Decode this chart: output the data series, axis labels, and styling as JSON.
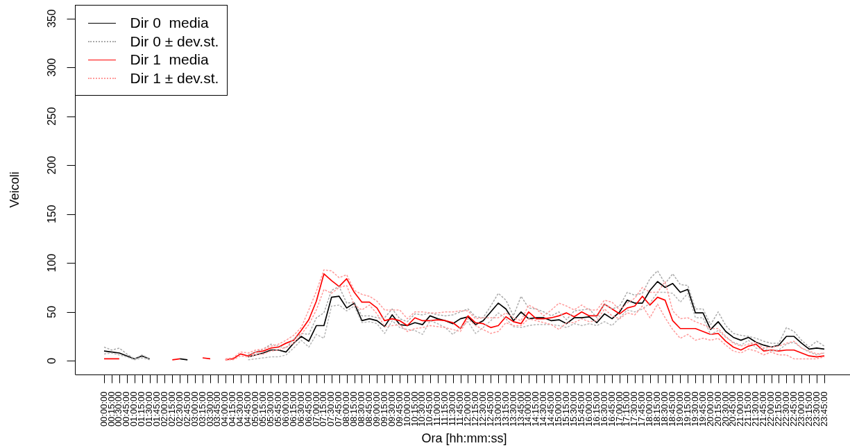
{
  "chart_data": {
    "type": "line",
    "xlabel": "Ora [hh:mm:ss]",
    "ylabel": "Veicoli",
    "legend": "top left",
    "categories": [
      "00:00:00",
      "00:15:00",
      "00:30:00",
      "00:45:00",
      "01:00:00",
      "01:15:00",
      "01:30:00",
      "01:45:00",
      "02:00:00",
      "02:15:00",
      "02:30:00",
      "02:45:00",
      "03:00:00",
      "03:15:00",
      "03:30:00",
      "03:45:00",
      "04:00:00",
      "04:15:00",
      "04:30:00",
      "04:45:00",
      "05:00:00",
      "05:15:00",
      "05:30:00",
      "05:45:00",
      "06:00:00",
      "06:15:00",
      "06:30:00",
      "06:45:00",
      "07:00:00",
      "07:15:00",
      "07:30:00",
      "07:45:00",
      "08:00:00",
      "08:15:00",
      "08:30:00",
      "08:45:00",
      "09:00:00",
      "09:15:00",
      "09:30:00",
      "09:45:00",
      "10:00:00",
      "10:15:00",
      "10:30:00",
      "10:45:00",
      "11:00:00",
      "11:15:00",
      "11:30:00",
      "11:45:00",
      "12:00:00",
      "12:15:00",
      "12:30:00",
      "12:45:00",
      "13:00:00",
      "13:15:00",
      "13:30:00",
      "13:45:00",
      "14:00:00",
      "14:15:00",
      "14:30:00",
      "14:45:00",
      "15:00:00",
      "15:15:00",
      "15:30:00",
      "15:45:00",
      "16:00:00",
      "16:15:00",
      "16:30:00",
      "16:45:00",
      "17:00:00",
      "17:15:00",
      "17:30:00",
      "17:45:00",
      "18:00:00",
      "18:15:00",
      "18:30:00",
      "18:45:00",
      "19:00:00",
      "19:15:00",
      "19:30:00",
      "19:45:00",
      "20:00:00",
      "20:15:00",
      "20:30:00",
      "20:45:00",
      "21:00:00",
      "21:15:00",
      "21:30:00",
      "21:45:00",
      "22:00:00",
      "22:15:00",
      "22:30:00",
      "22:45:00",
      "23:00:00",
      "23:15:00",
      "23:30:00",
      "23:45:00"
    ],
    "ylim": [
      -14,
      364
    ],
    "yticks": [
      0,
      50,
      100,
      150,
      200,
      250,
      300,
      350
    ],
    "series": [
      {
        "name": "Dir 0  media",
        "color": "#000000",
        "line_style": "solid",
        "values": [
          10,
          9,
          8,
          5,
          2,
          5,
          2,
          null,
          null,
          null,
          2,
          1,
          null,
          null,
          null,
          null,
          null,
          null,
          null,
          4,
          6,
          8,
          11,
          11,
          9,
          18,
          25,
          20,
          36,
          36,
          65,
          66,
          54,
          59,
          41,
          43,
          41,
          35,
          47,
          37,
          36,
          39,
          37,
          46,
          43,
          41,
          38,
          43,
          45,
          37,
          41,
          50,
          59,
          53,
          41,
          50,
          43,
          44,
          44,
          41,
          42,
          38,
          44,
          44,
          45,
          39,
          48,
          43,
          50,
          62,
          59,
          59,
          72,
          81,
          75,
          79,
          70,
          73,
          49,
          49,
          32,
          40,
          30,
          24,
          21,
          24,
          19,
          16,
          14,
          16,
          25,
          25,
          18,
          12,
          13,
          12
        ]
      },
      {
        "name": "Dir 0 ± dev.st.",
        "color": "#a9a9a9",
        "line_style": "dotted",
        "values": [
          14,
          11,
          13,
          7,
          2,
          6,
          2,
          null,
          null,
          null,
          null,
          null,
          null,
          null,
          null,
          null,
          null,
          null,
          null,
          6,
          9,
          12,
          17,
          15,
          13,
          22,
          28,
          27,
          44,
          49,
          72,
          76,
          59,
          60,
          46,
          46,
          44,
          44,
          53,
          43,
          40,
          48,
          47,
          49,
          47,
          46,
          47,
          50,
          53,
          45,
          44,
          56,
          69,
          62,
          46,
          66,
          54,
          53,
          50,
          46,
          50,
          42,
          51,
          52,
          53,
          44,
          58,
          53,
          56,
          70,
          67,
          69,
          84,
          92,
          79,
          89,
          78,
          77,
          53,
          53,
          37,
          50,
          36,
          28,
          26,
          25,
          23,
          20,
          18,
          18,
          34,
          30,
          21,
          14,
          20,
          15
        ]
      },
      {
        "color": "#b6b6b6",
        "line_style": "dotted",
        "values": [
          7,
          8,
          6,
          4,
          1,
          3,
          1,
          null,
          null,
          null,
          null,
          null,
          null,
          null,
          null,
          null,
          null,
          null,
          null,
          1,
          2,
          3,
          4,
          4,
          6,
          13,
          21,
          14,
          27,
          23,
          56,
          57,
          51,
          56,
          39,
          40,
          38,
          28,
          41,
          34,
          32,
          31,
          27,
          41,
          38,
          34,
          27,
          34,
          40,
          28,
          34,
          41,
          49,
          43,
          35,
          34,
          36,
          37,
          37,
          37,
          36,
          34,
          38,
          36,
          38,
          36,
          40,
          36,
          44,
          52,
          50,
          53,
          59,
          70,
          70,
          69,
          60,
          69,
          44,
          44,
          27,
          31,
          24,
          19,
          16,
          21,
          13,
          12,
          10,
          11,
          17,
          19,
          13,
          9,
          6,
          8
        ]
      },
      {
        "name": "Dir 1  media",
        "color": "#ff0000",
        "line_style": "solid",
        "values": [
          2,
          2,
          2,
          null,
          null,
          null,
          null,
          null,
          null,
          1,
          2,
          null,
          null,
          3,
          2,
          null,
          1,
          2,
          7,
          5,
          9,
          10,
          13,
          14,
          18,
          21,
          31,
          42,
          61,
          89,
          82,
          76,
          84,
          70,
          60,
          60,
          54,
          41,
          43,
          41,
          36,
          44,
          41,
          41,
          42,
          41,
          39,
          33,
          46,
          39,
          38,
          34,
          36,
          45,
          40,
          38,
          50,
          43,
          43,
          44,
          46,
          49,
          45,
          50,
          46,
          46,
          58,
          53,
          48,
          54,
          56,
          66,
          57,
          65,
          62,
          41,
          33,
          33,
          33,
          30,
          27,
          28,
          20,
          14,
          11,
          15,
          17,
          10,
          11,
          10,
          11,
          11,
          8,
          5,
          4,
          5
        ]
      },
      {
        "name": "Dir 1 ± dev.st.",
        "color": "#ff9a9a",
        "line_style": "dotted",
        "values": [
          null,
          null,
          null,
          null,
          null,
          null,
          null,
          null,
          null,
          null,
          null,
          null,
          null,
          null,
          null,
          null,
          2,
          3,
          9,
          8,
          11,
          12,
          15,
          17,
          21,
          26,
          34,
          52,
          71,
          93,
          92,
          85,
          88,
          72,
          68,
          66,
          61,
          52,
          52,
          52,
          43,
          50,
          50,
          49,
          49,
          50,
          50,
          51,
          51,
          43,
          44,
          44,
          44,
          49,
          44,
          41,
          57,
          53,
          46,
          52,
          59,
          56,
          52,
          57,
          52,
          52,
          62,
          60,
          52,
          59,
          64,
          75,
          70,
          70,
          81,
          51,
          43,
          44,
          40,
          37,
          33,
          33,
          25,
          18,
          15,
          17,
          19,
          13,
          14,
          15,
          18,
          20,
          13,
          10,
          7,
          8
        ]
      },
      {
        "color": "#ff9a9a",
        "line_style": "dotted",
        "values": [
          null,
          null,
          null,
          null,
          null,
          null,
          null,
          null,
          null,
          null,
          null,
          null,
          null,
          null,
          null,
          null,
          1,
          1,
          5,
          4,
          6,
          7,
          10,
          11,
          14,
          18,
          27,
          37,
          52,
          73,
          69,
          75,
          77,
          57,
          52,
          57,
          48,
          35,
          36,
          37,
          30,
          33,
          34,
          36,
          35,
          34,
          32,
          30,
          43,
          36,
          32,
          28,
          30,
          39,
          36,
          36,
          43,
          41,
          39,
          37,
          32,
          39,
          39,
          43,
          40,
          41,
          53,
          46,
          43,
          49,
          47,
          56,
          44,
          58,
          44,
          32,
          23,
          27,
          21,
          23,
          21,
          23,
          16,
          10,
          8,
          12,
          10,
          6,
          9,
          6,
          6,
          2,
          2,
          2,
          2,
          4
        ]
      }
    ]
  }
}
